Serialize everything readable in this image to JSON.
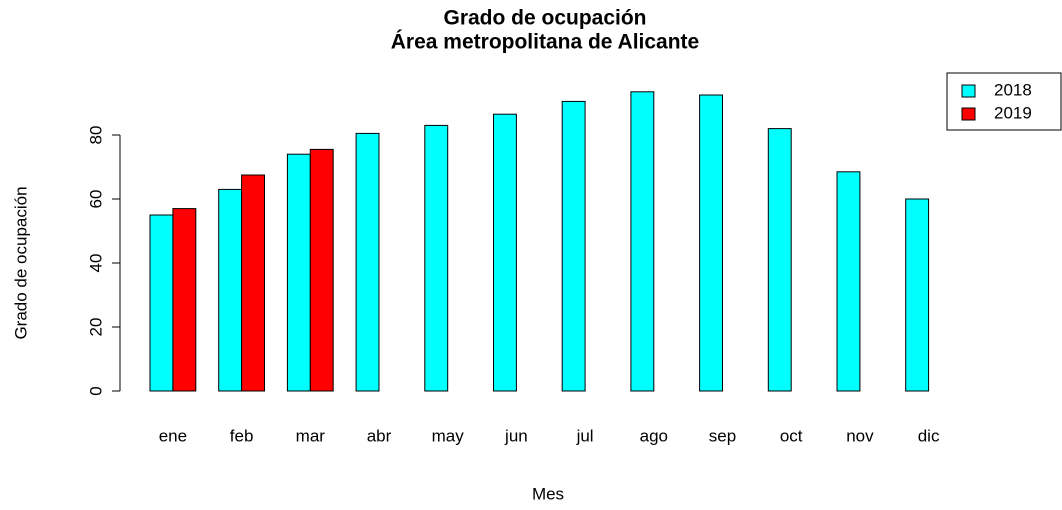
{
  "chart_data": {
    "type": "bar",
    "title": [
      "Grado de ocupación",
      "Área metropolitana de Alicante"
    ],
    "x_label": "Mes",
    "y_label": "Grado de ocupación",
    "categories": [
      "ene",
      "feb",
      "mar",
      "abr",
      "may",
      "jun",
      "jul",
      "ago",
      "sep",
      "oct",
      "nov",
      "dic"
    ],
    "series": [
      {
        "name": "2018",
        "color": "#00ffff",
        "values": [
          55,
          63,
          74,
          80.5,
          83,
          86.5,
          90.5,
          93.5,
          92.5,
          82,
          68.5,
          60
        ]
      },
      {
        "name": "2019",
        "color": "#ff0000",
        "values": [
          57,
          67.5,
          75.5,
          null,
          null,
          null,
          null,
          null,
          null,
          null,
          null,
          null
        ]
      }
    ],
    "ylim": [
      0,
      100
    ],
    "yticks": [
      0,
      20,
      40,
      60,
      80
    ],
    "legend": "top-right"
  }
}
